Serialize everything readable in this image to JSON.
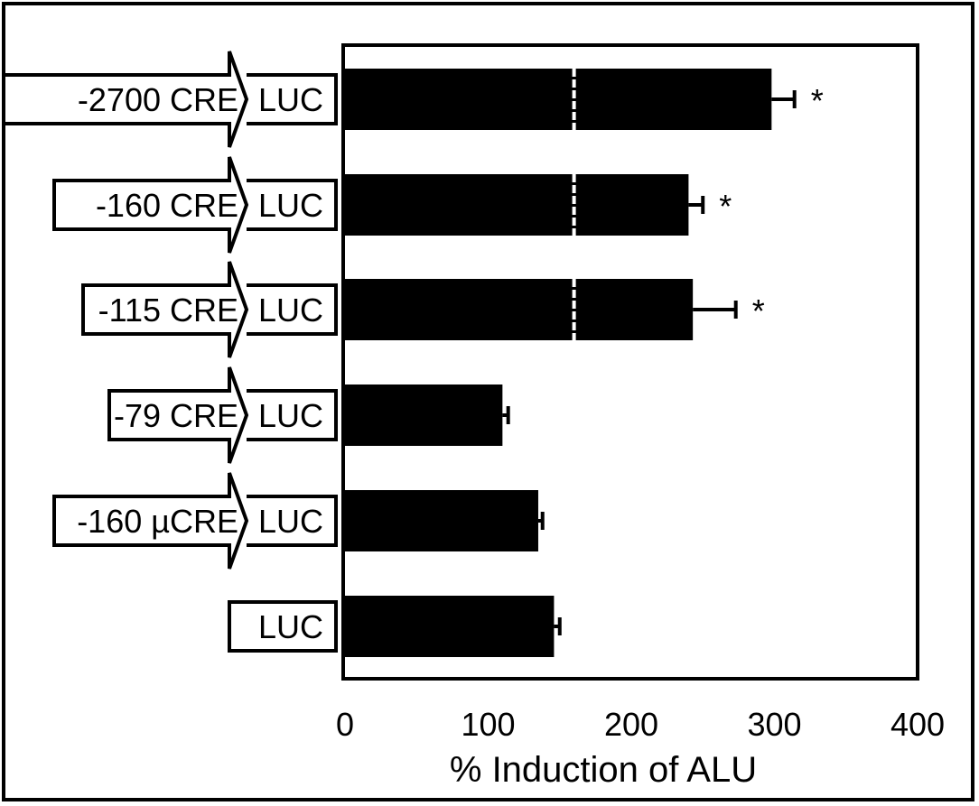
{
  "chart_data": {
    "type": "bar",
    "orientation": "horizontal",
    "xlabel": "% Induction of ALU",
    "xlim": [
      0,
      400
    ],
    "xticks": [
      "0",
      "100",
      "200",
      "300",
      "400"
    ],
    "grid": false,
    "reference_line": 160,
    "categories": [
      {
        "construct": "-2700 CRE",
        "reporter": "LUC",
        "value": 298,
        "error": 16,
        "significant": "*"
      },
      {
        "construct": "-160 CRE",
        "reporter": "LUC",
        "value": 240,
        "error": 10,
        "significant": "*"
      },
      {
        "construct": "-115 CRE",
        "reporter": "LUC",
        "value": 243,
        "error": 30,
        "significant": "*"
      },
      {
        "construct": "-79 CRE",
        "reporter": "LUC",
        "value": 110,
        "error": 4,
        "significant": ""
      },
      {
        "construct": "-160 µCRE",
        "reporter": "LUC",
        "value": 135,
        "error": 3,
        "significant": ""
      },
      {
        "construct": "",
        "reporter": "LUC",
        "value": 146,
        "error": 4,
        "significant": ""
      }
    ],
    "colors": {
      "bar": "#000000",
      "reference_line": "#ffffff",
      "background": "#ffffff"
    }
  }
}
